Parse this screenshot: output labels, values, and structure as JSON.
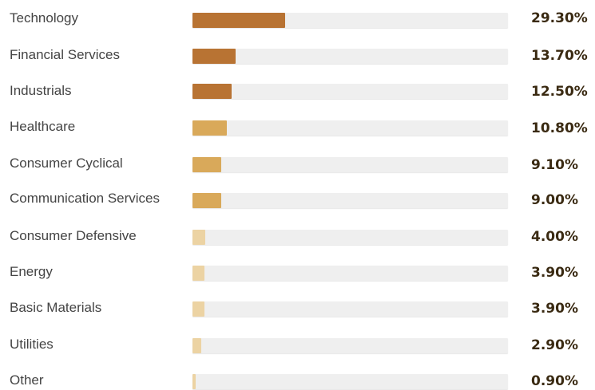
{
  "chart_data": {
    "type": "bar",
    "orientation": "horizontal",
    "categories": [
      "Technology",
      "Financial Services",
      "Industrials",
      "Healthcare",
      "Consumer Cyclical",
      "Communication Services",
      "Consumer Defensive",
      "Energy",
      "Basic Materials",
      "Utilities",
      "Other"
    ],
    "values": [
      29.3,
      13.7,
      12.5,
      10.8,
      9.1,
      9.0,
      4.0,
      3.9,
      3.9,
      2.9,
      0.9
    ],
    "value_labels": [
      "29.30%",
      "13.70%",
      "12.50%",
      "10.80%",
      "9.10%",
      "9.00%",
      "4.00%",
      "3.90%",
      "3.90%",
      "2.90%",
      "0.90%"
    ],
    "xlim": [
      0,
      100
    ],
    "bar_colors": [
      "#b87333",
      "#b87333",
      "#b87333",
      "#d9a95a",
      "#d9a95a",
      "#d9a95a",
      "#ecd3a3",
      "#ecd3a3",
      "#ecd3a3",
      "#ecd3a3",
      "#ecd3a3"
    ],
    "track_color": "#efefef",
    "title": "",
    "xlabel": "",
    "ylabel": "",
    "grid": false,
    "legend": "none"
  }
}
